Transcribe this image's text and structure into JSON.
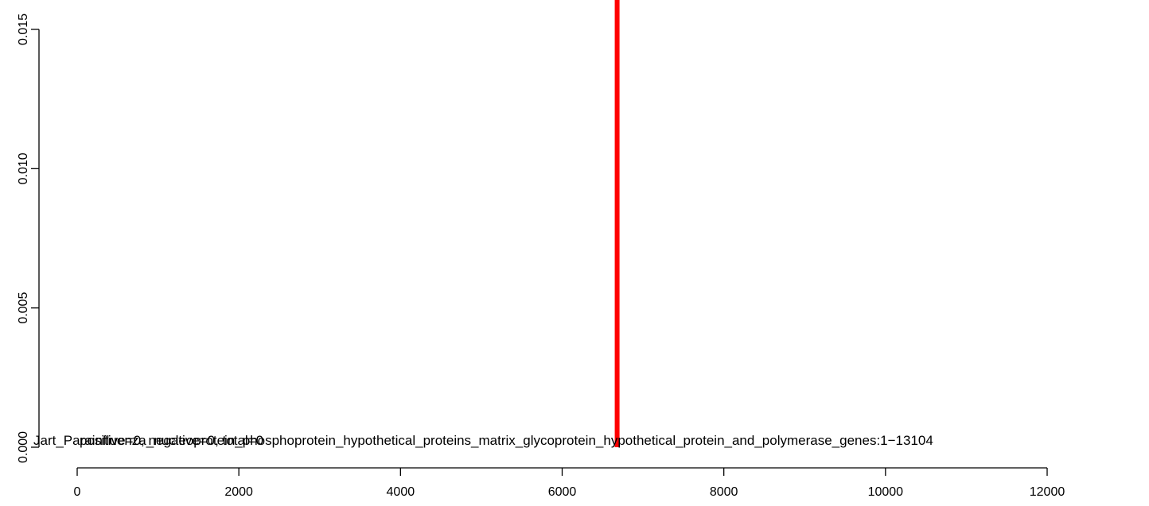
{
  "chart_data": {
    "type": "line",
    "title": "",
    "xlabel": "",
    "ylabel": "",
    "xlim": [
      0,
      13104
    ],
    "ylim": [
      0,
      0.015
    ],
    "x_ticks": [
      0,
      2000,
      4000,
      6000,
      8000,
      10000,
      12000
    ],
    "x_tick_labels": [
      "0",
      "2000",
      "4000",
      "6000",
      "8000",
      "10000",
      "12000"
    ],
    "y_ticks": [
      0.0,
      0.005,
      0.01,
      0.015
    ],
    "y_tick_labels": [
      "0.000",
      "0.005",
      "0.010",
      "0.015"
    ],
    "grid": false,
    "series": [
      {
        "color": "#ff0000",
        "x": [
          6680,
          6680
        ],
        "y": [
          0,
          0.0165
        ]
      }
    ],
    "annotations": [
      "Jart_Parainfluenza_nucleoprotein_phosphoprotein_hypothetical_proteins_matrix_glycoprotein_hypothetical_protein_and_polymerase_genes:1−13104",
      "positive=0, negative=0, total=0"
    ]
  }
}
